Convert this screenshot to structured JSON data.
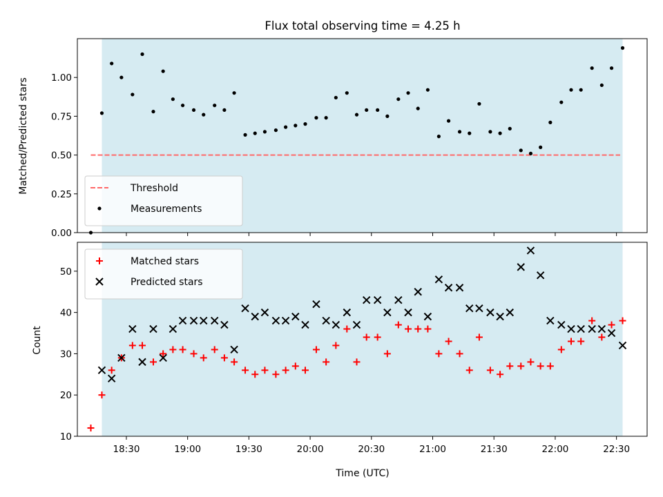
{
  "chart_data": {
    "title": "Flux total observing time = 4.25 h",
    "xlabel": "Time (UTC)",
    "x_unit": "hours UTC",
    "xlim": [
      18.1,
      22.75
    ],
    "xticks": [
      {
        "value": 18.5,
        "label": "18:30"
      },
      {
        "value": 19.0,
        "label": "19:00"
      },
      {
        "value": 19.5,
        "label": "19:30"
      },
      {
        "value": 20.0,
        "label": "20:00"
      },
      {
        "value": 20.5,
        "label": "20:30"
      },
      {
        "value": 21.0,
        "label": "21:00"
      },
      {
        "value": 21.5,
        "label": "21:30"
      },
      {
        "value": 22.0,
        "label": "22:00"
      },
      {
        "value": 22.5,
        "label": "22:30"
      }
    ],
    "observing_window": [
      18.3,
      22.55
    ],
    "colors": {
      "window": "#add8e6",
      "threshold": "#ff6666",
      "matched": "#ff0000",
      "predicted": "#000000",
      "measurements": "#000000"
    },
    "panels": [
      {
        "type": "scatter",
        "ylabel": "Matched/Predicted stars",
        "ylim": [
          0,
          1.25
        ],
        "yticks": [
          {
            "value": 0,
            "label": "0.00"
          },
          {
            "value": 0.25,
            "label": "0.25"
          },
          {
            "value": 0.5,
            "label": "0.50"
          },
          {
            "value": 0.75,
            "label": "0.75"
          },
          {
            "value": 1.0,
            "label": "1.00"
          }
        ],
        "legend_position": "bottom-left",
        "threshold": {
          "name": "Threshold",
          "value": 0.5,
          "x_range": [
            18.21,
            22.53
          ]
        },
        "series": [
          {
            "name": "Measurements",
            "marker": "dot",
            "x": [
              18.21,
              18.3,
              18.38,
              18.46,
              18.55,
              18.63,
              18.72,
              18.8,
              18.88,
              18.96,
              19.05,
              19.13,
              19.22,
              19.3,
              19.38,
              19.47,
              19.55,
              19.63,
              19.72,
              19.8,
              19.88,
              19.96,
              20.05,
              20.13,
              20.21,
              20.3,
              20.38,
              20.46,
              20.55,
              20.63,
              20.72,
              20.8,
              20.88,
              20.96,
              21.05,
              21.13,
              21.22,
              21.3,
              21.38,
              21.47,
              21.55,
              21.63,
              21.72,
              21.8,
              21.88,
              21.96,
              22.05,
              22.13,
              22.21,
              22.3,
              22.38,
              22.46,
              22.55
            ],
            "y": [
              0.0,
              0.77,
              1.09,
              1.0,
              0.89,
              1.15,
              0.78,
              1.04,
              0.86,
              0.82,
              0.79,
              0.76,
              0.82,
              0.79,
              0.9,
              0.63,
              0.64,
              0.65,
              0.66,
              0.68,
              0.69,
              0.7,
              0.74,
              0.74,
              0.87,
              0.9,
              0.76,
              0.79,
              0.79,
              0.75,
              0.86,
              0.9,
              0.8,
              0.92,
              0.62,
              0.72,
              0.65,
              0.64,
              0.83,
              0.65,
              0.64,
              0.67,
              0.53,
              0.51,
              0.55,
              0.71,
              0.84,
              0.92,
              0.92,
              1.06,
              0.95,
              1.06,
              1.19
            ]
          }
        ]
      },
      {
        "type": "scatter",
        "ylabel": "Count",
        "ylim": [
          10,
          57
        ],
        "yticks": [
          {
            "value": 10,
            "label": "10"
          },
          {
            "value": 20,
            "label": "20"
          },
          {
            "value": 30,
            "label": "30"
          },
          {
            "value": 40,
            "label": "40"
          },
          {
            "value": 50,
            "label": "50"
          }
        ],
        "legend_position": "top-left",
        "series": [
          {
            "name": "Matched stars",
            "marker": "plus",
            "x": [
              18.21,
              18.3,
              18.38,
              18.46,
              18.55,
              18.63,
              18.72,
              18.8,
              18.88,
              18.96,
              19.05,
              19.13,
              19.22,
              19.3,
              19.38,
              19.47,
              19.55,
              19.63,
              19.72,
              19.8,
              19.88,
              19.96,
              20.05,
              20.13,
              20.21,
              20.3,
              20.38,
              20.46,
              20.55,
              20.63,
              20.72,
              20.8,
              20.88,
              20.96,
              21.05,
              21.13,
              21.22,
              21.3,
              21.38,
              21.47,
              21.55,
              21.63,
              21.72,
              21.8,
              21.88,
              21.96,
              22.05,
              22.13,
              22.21,
              22.3,
              22.38,
              22.46,
              22.55
            ],
            "y": [
              12,
              20,
              26,
              29,
              32,
              32,
              28,
              30,
              31,
              31,
              30,
              29,
              31,
              29,
              28,
              26,
              25,
              26,
              25,
              26,
              27,
              26,
              31,
              28,
              32,
              36,
              28,
              34,
              34,
              30,
              37,
              36,
              36,
              36,
              30,
              33,
              30,
              26,
              34,
              26,
              25,
              27,
              27,
              28,
              27,
              27,
              31,
              33,
              33,
              38,
              34,
              37,
              38
            ]
          },
          {
            "name": "Predicted stars",
            "marker": "x",
            "x": [
              18.3,
              18.38,
              18.46,
              18.55,
              18.63,
              18.72,
              18.8,
              18.88,
              18.96,
              19.05,
              19.13,
              19.22,
              19.3,
              19.38,
              19.47,
              19.55,
              19.63,
              19.72,
              19.8,
              19.88,
              19.96,
              20.05,
              20.13,
              20.21,
              20.3,
              20.38,
              20.46,
              20.55,
              20.63,
              20.72,
              20.8,
              20.88,
              20.96,
              21.05,
              21.13,
              21.22,
              21.3,
              21.38,
              21.47,
              21.55,
              21.63,
              21.72,
              21.8,
              21.88,
              21.96,
              22.05,
              22.13,
              22.21,
              22.3,
              22.38,
              22.46,
              22.55
            ],
            "y": [
              26,
              24,
              29,
              36,
              28,
              36,
              29,
              36,
              38,
              38,
              38,
              38,
              37,
              31,
              41,
              39,
              40,
              38,
              38,
              39,
              37,
              42,
              38,
              37,
              40,
              37,
              43,
              43,
              40,
              43,
              40,
              45,
              39,
              48,
              46,
              46,
              41,
              41,
              40,
              39,
              40,
              51,
              55,
              49,
              38,
              37,
              36,
              36,
              36,
              36,
              35,
              32
            ]
          }
        ]
      }
    ]
  }
}
